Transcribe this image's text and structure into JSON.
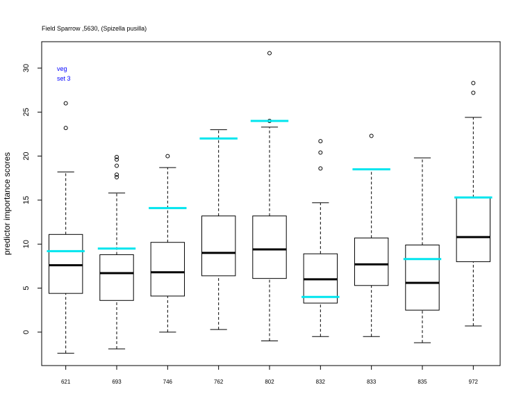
{
  "chart_data": {
    "type": "box",
    "title": "Field Sparrow ,5630, (Spizella pusilla)",
    "ylabel": "predictor importance scores",
    "xlabel": "",
    "ylim": [
      -3.8,
      33
    ],
    "yticks": [
      0,
      5,
      10,
      15,
      20,
      25,
      30
    ],
    "annotations": [
      "veg",
      "set 3"
    ],
    "annotation_color": "#0000ff",
    "marker_color": "#00e5ee",
    "categories": [
      "621",
      "693",
      "746",
      "762",
      "802",
      "832",
      "833",
      "835",
      "972"
    ],
    "boxes": [
      {
        "min": -2.4,
        "q1": 4.4,
        "median": 7.6,
        "q3": 11.1,
        "max": 18.2,
        "outliers": [
          23.2,
          26.0
        ],
        "marker": 9.2
      },
      {
        "min": -1.9,
        "q1": 3.6,
        "median": 6.7,
        "q3": 8.8,
        "max": 15.8,
        "outliers": [
          17.6,
          17.9,
          18.9,
          19.6,
          19.9
        ],
        "marker": 9.5
      },
      {
        "min": 0.0,
        "q1": 4.1,
        "median": 6.8,
        "q3": 10.2,
        "max": 18.7,
        "outliers": [
          20.0
        ],
        "marker": 14.1
      },
      {
        "min": 0.3,
        "q1": 6.4,
        "median": 9.0,
        "q3": 13.2,
        "max": 23.0,
        "outliers": [],
        "marker": 22.0
      },
      {
        "min": -1.0,
        "q1": 6.1,
        "median": 9.4,
        "q3": 13.2,
        "max": 23.3,
        "outliers": [
          24.0,
          31.7
        ],
        "marker": 24.0
      },
      {
        "min": -0.5,
        "q1": 3.3,
        "median": 6.0,
        "q3": 8.9,
        "max": 14.7,
        "outliers": [
          18.6,
          20.4,
          21.7
        ],
        "marker": 4.0
      },
      {
        "min": -0.5,
        "q1": 5.3,
        "median": 7.7,
        "q3": 10.7,
        "max": 18.5,
        "outliers": [
          22.3
        ],
        "marker": 18.5
      },
      {
        "min": -1.2,
        "q1": 2.5,
        "median": 5.6,
        "q3": 9.9,
        "max": 19.8,
        "outliers": [],
        "marker": 8.3
      },
      {
        "min": 0.7,
        "q1": 8.0,
        "median": 10.8,
        "q3": 15.3,
        "max": 24.4,
        "outliers": [
          27.2,
          28.3
        ],
        "marker": 15.3
      }
    ]
  }
}
